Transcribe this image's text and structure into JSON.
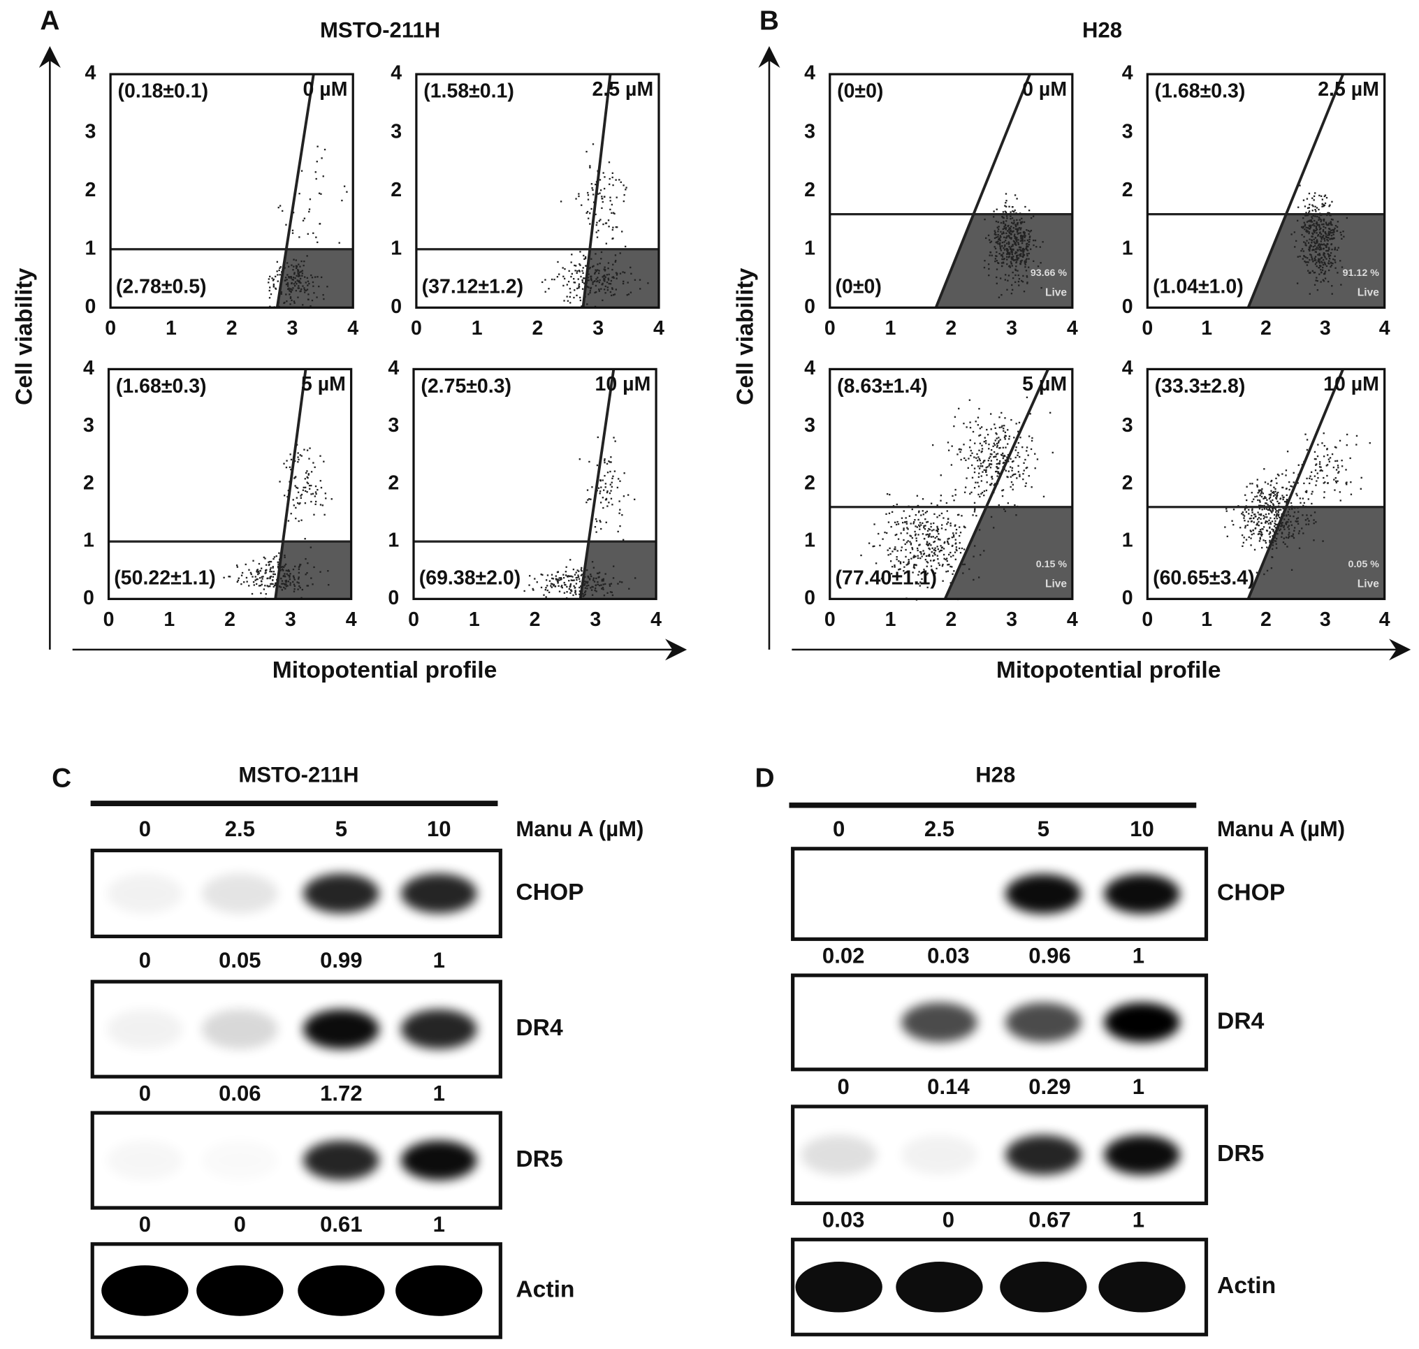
{
  "panels": [
    {
      "letter": "A",
      "title": "MSTO-211H",
      "y_label": "Cell viability",
      "x_label": "Mitopotential profile",
      "ticks": [
        0,
        1,
        2,
        3,
        4
      ],
      "plots": [
        {
          "dose": "0 µM",
          "upper_left": "(0.18±0.1)",
          "lower_left": "(2.78±0.5)"
        },
        {
          "dose": "2.5 µM",
          "upper_left": "(1.58±0.1)",
          "lower_left": "(37.12±1.2)"
        },
        {
          "dose": "5 µM",
          "upper_left": "(1.68±0.3)",
          "lower_left": "(50.22±1.1)"
        },
        {
          "dose": "10 µM",
          "upper_left": "(2.75±0.3)",
          "lower_left": "(69.38±2.0)"
        }
      ]
    },
    {
      "letter": "B",
      "title": "H28",
      "y_label": "Cell viability",
      "x_label": "Mitopotential profile",
      "ticks": [
        0,
        1,
        2,
        3,
        4
      ],
      "plots": [
        {
          "dose": "0 µM",
          "upper_left": "(0±0)",
          "lower_left": "(0±0)",
          "live_pct": "93.66 %",
          "live": "Live"
        },
        {
          "dose": "2.5 µM",
          "upper_left": "(1.68±0.3)",
          "lower_left": "(1.04±1.0)",
          "live_pct": "91.12 %",
          "live": "Live"
        },
        {
          "dose": "5 µM",
          "upper_left": "(8.63±1.4)",
          "lower_left": "(77.40±1.1)",
          "live_pct": "0.15 %",
          "live": "Live"
        },
        {
          "dose": "10 µM",
          "upper_left": "(33.3±2.8)",
          "lower_left": "(60.65±3.4)",
          "live_pct": "0.05 %",
          "live": "Live"
        }
      ]
    }
  ],
  "blots": [
    {
      "letter": "C",
      "title": "MSTO-211H",
      "dose_label": "Manu A (µM)",
      "doses": [
        0,
        2.5,
        5,
        10
      ],
      "rows": [
        {
          "protein": "CHOP",
          "quant": [
            0,
            0.05,
            0.99,
            1
          ]
        },
        {
          "protein": "DR4",
          "quant": [
            0,
            0.06,
            1.72,
            1
          ]
        },
        {
          "protein": "DR5",
          "quant": [
            0,
            0,
            0.61,
            1
          ]
        },
        {
          "protein": "Actin"
        }
      ]
    },
    {
      "letter": "D",
      "title": "H28",
      "dose_label": "Manu A (µM)",
      "doses": [
        0,
        2.5,
        5,
        10
      ],
      "rows": [
        {
          "protein": "CHOP",
          "quant": [
            0.02,
            0.03,
            0.96,
            1
          ]
        },
        {
          "protein": "DR4",
          "quant": [
            0,
            0.14,
            0.29,
            1
          ]
        },
        {
          "protein": "DR5",
          "quant": [
            0.03,
            0,
            0.67,
            1
          ]
        },
        {
          "protein": "Actin"
        }
      ]
    }
  ]
}
